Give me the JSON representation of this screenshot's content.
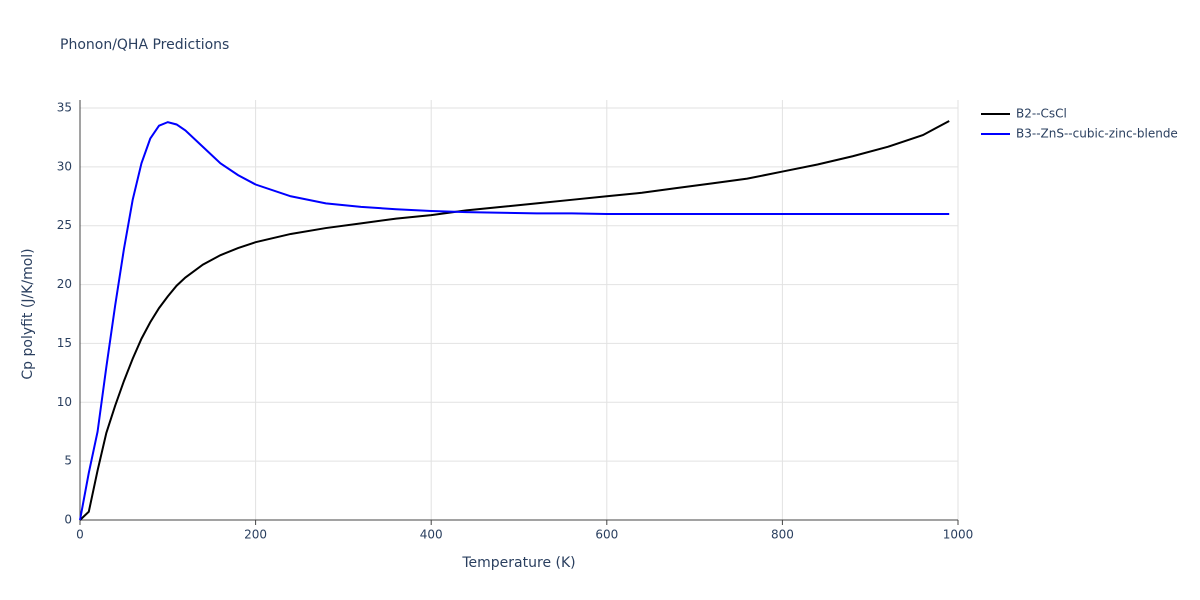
{
  "chart_data": {
    "type": "line",
    "title": "Phonon/QHA Predictions",
    "x_label": "Temperature (K)",
    "y_label": "Cp polyfit (J/K/mol)",
    "x": [
      0,
      10,
      20,
      30,
      40,
      50,
      60,
      70,
      80,
      90,
      100,
      110,
      120,
      140,
      160,
      180,
      200,
      240,
      280,
      320,
      360,
      400,
      440,
      480,
      520,
      560,
      600,
      640,
      680,
      720,
      760,
      800,
      840,
      880,
      920,
      960,
      990
    ],
    "series": [
      {
        "name": "B2--CsCl",
        "color": "#000000",
        "values": [
          0,
          0.7,
          4.2,
          7.4,
          9.7,
          11.8,
          13.7,
          15.4,
          16.8,
          18.0,
          19.0,
          19.9,
          20.6,
          21.7,
          22.5,
          23.1,
          23.6,
          24.3,
          24.8,
          25.2,
          25.6,
          25.9,
          26.3,
          26.6,
          26.9,
          27.2,
          27.5,
          27.8,
          28.2,
          28.6,
          29.0,
          29.6,
          30.2,
          30.9,
          31.7,
          32.7,
          33.9
        ]
      },
      {
        "name": "B3--ZnS--cubic-zinc-blende",
        "color": "#0000ff",
        "values": [
          0,
          4.0,
          7.5,
          13.0,
          18.2,
          23.0,
          27.2,
          30.3,
          32.4,
          33.5,
          33.8,
          33.6,
          33.1,
          31.7,
          30.3,
          29.3,
          28.5,
          27.5,
          26.9,
          26.6,
          26.4,
          26.25,
          26.15,
          26.1,
          26.05,
          26.05,
          26.0,
          26.0,
          26.0,
          26.0,
          26.0,
          26.0,
          26.0,
          26.0,
          26.0,
          26.0,
          26.0
        ]
      }
    ],
    "xlim": [
      0,
      1000
    ],
    "xticks": [
      0,
      200,
      400,
      600,
      800,
      1000
    ],
    "ylim": [
      0,
      35
    ],
    "yticks": [
      0,
      5,
      10,
      15,
      20,
      25,
      30,
      35
    ],
    "grid": true,
    "legend": "top-right"
  }
}
